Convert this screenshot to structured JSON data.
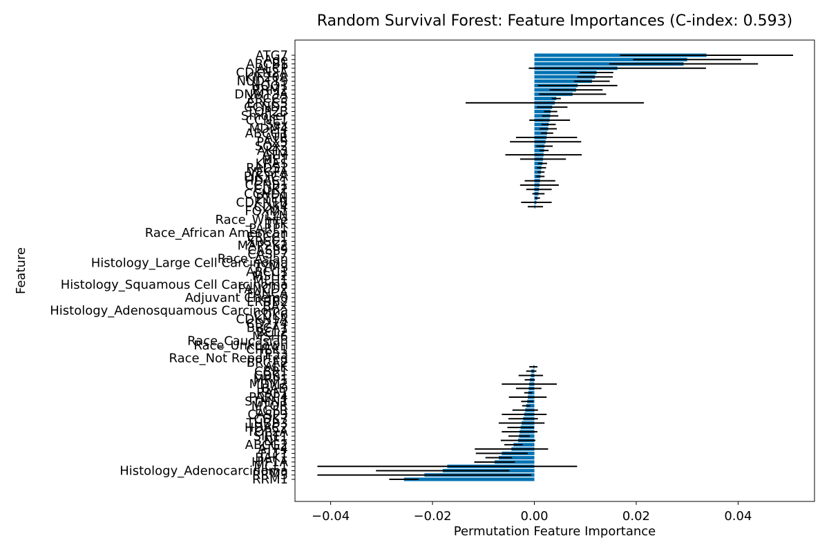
{
  "chart_data": {
    "type": "bar",
    "orientation": "horizontal",
    "title": "Random Survival Forest: Feature Importances (C-index: 0.593)",
    "xlabel": "Permutation Feature Importance",
    "ylabel": "Feature",
    "xlim": [
      -0.047,
      0.055
    ],
    "xticks": [
      -0.04,
      -0.02,
      0.0,
      0.02,
      0.04
    ],
    "xtick_labels": [
      "−0.04",
      "−0.02",
      "0.00",
      "0.02",
      "0.04"
    ],
    "grid": false,
    "bar_color": "#0072b2",
    "error_color": "#000000",
    "features": [
      {
        "name": "ATG7",
        "value": 0.0338,
        "err": 0.017
      },
      {
        "name": "Age",
        "value": 0.03,
        "err": 0.0106
      },
      {
        "name": "ABCB1",
        "value": 0.0293,
        "err": 0.0146
      },
      {
        "name": "ALCP",
        "value": 0.0163,
        "err": 0.0174
      },
      {
        "name": "CDKN2A",
        "value": 0.0122,
        "err": 0.0033
      },
      {
        "name": "KIF20A",
        "value": 0.0119,
        "err": 0.0035
      },
      {
        "name": "NUDT15",
        "value": 0.0113,
        "err": 0.0035
      },
      {
        "name": "NQO1",
        "value": 0.0085,
        "err": 0.0078
      },
      {
        "name": "RRM2",
        "value": 0.0082,
        "err": 0.0052
      },
      {
        "name": "DNMT3A",
        "value": 0.0075,
        "err": 0.0066
      },
      {
        "name": "XRCC3",
        "value": 0.0043,
        "err": 0.0009
      },
      {
        "name": "ERCC5",
        "value": 0.004,
        "err": 0.0175
      },
      {
        "name": "CCND3",
        "value": 0.0035,
        "err": 0.003
      },
      {
        "name": "TOP2B",
        "value": 0.0032,
        "err": 0.0013
      },
      {
        "name": "Smoker",
        "value": 0.0031,
        "err": 0.0016
      },
      {
        "name": "CCNE1",
        "value": 0.003,
        "err": 0.004
      },
      {
        "name": "Sex",
        "value": 0.0028,
        "err": 0.0014
      },
      {
        "name": "MDM4",
        "value": 0.0027,
        "err": 0.0017
      },
      {
        "name": "ABCG1",
        "value": 0.0025,
        "err": 0.0012
      },
      {
        "name": "ATR",
        "value": 0.0024,
        "err": 0.006
      },
      {
        "name": "PAX5",
        "value": 0.0022,
        "err": 0.007
      },
      {
        "name": "SOX2",
        "value": 0.002,
        "err": 0.0016
      },
      {
        "name": "AKT3",
        "value": 0.0019,
        "err": 0.0009
      },
      {
        "name": "ATM",
        "value": 0.0018,
        "err": 0.0075
      },
      {
        "name": "MET",
        "value": 0.0017,
        "err": 0.0045
      },
      {
        "name": "KRAS",
        "value": 0.0016,
        "err": 0.0009
      },
      {
        "name": "RAD51",
        "value": 0.0014,
        "err": 0.0009
      },
      {
        "name": "VEGFA",
        "value": 0.0013,
        "err": 0.0007
      },
      {
        "name": "PIK3CA",
        "value": 0.0012,
        "err": 0.0008
      },
      {
        "name": "HDAC1",
        "value": 0.0011,
        "err": 0.003
      },
      {
        "name": "CCNB1",
        "value": 0.001,
        "err": 0.0038
      },
      {
        "name": "CDK2",
        "value": 0.0009,
        "err": 0.0025
      },
      {
        "name": "CCND1",
        "value": 0.0008,
        "err": 0.0012
      },
      {
        "name": "PTEN",
        "value": 0.0006,
        "err": 0.0005
      },
      {
        "name": "CDKN1B",
        "value": 0.0004,
        "err": 0.003
      },
      {
        "name": "CDK4",
        "value": 0.0002,
        "err": 0.0015
      },
      {
        "name": "FOXM1",
        "value": 0,
        "err": 0
      },
      {
        "name": "LYN",
        "value": 0,
        "err": 0
      },
      {
        "name": "Race_White",
        "value": 0,
        "err": 0
      },
      {
        "name": "TTK",
        "value": 0,
        "err": 0
      },
      {
        "name": "PARP1",
        "value": 0,
        "err": 0
      },
      {
        "name": "Race_African American",
        "value": 0,
        "err": 0
      },
      {
        "name": "ERCC1",
        "value": 0,
        "err": 0
      },
      {
        "name": "XRCC1",
        "value": 0,
        "err": 0
      },
      {
        "name": "MAP2K2",
        "value": 0,
        "err": 0
      },
      {
        "name": "CASP9",
        "value": 0,
        "err": 0
      },
      {
        "name": "CASP7",
        "value": 0,
        "err": 0
      },
      {
        "name": "Race_Asian",
        "value": 0,
        "err": 0
      },
      {
        "name": "Histology_Large Cell Carcinoma",
        "value": 0,
        "err": 0
      },
      {
        "name": "TYMS",
        "value": 0,
        "err": 0
      },
      {
        "name": "ABCC1",
        "value": 0,
        "err": 0
      },
      {
        "name": "MSH2",
        "value": 0,
        "err": 0
      },
      {
        "name": "MLH1",
        "value": 0,
        "err": 0
      },
      {
        "name": "Histology_Squamous Cell Carcinoma",
        "value": 0,
        "err": 0
      },
      {
        "name": "FANCD2",
        "value": 0,
        "err": 0
      },
      {
        "name": "FANCA",
        "value": 0,
        "err": 0
      },
      {
        "name": "Adjuvant Chemo",
        "value": 0,
        "err": 0
      },
      {
        "name": "ERBB2",
        "value": 0,
        "err": 0
      },
      {
        "name": "BAX",
        "value": 0,
        "err": 0
      },
      {
        "name": "Histology_Adenosquamous Carcinoma",
        "value": 0,
        "err": 0
      },
      {
        "name": "CDK6",
        "value": 0,
        "err": 0
      },
      {
        "name": "CDKN1A",
        "value": 0,
        "err": 0
      },
      {
        "name": "CD274",
        "value": 0,
        "err": 0
      },
      {
        "name": "BRCA1",
        "value": 0,
        "err": 0
      },
      {
        "name": "BCL2",
        "value": 0,
        "err": 0
      },
      {
        "name": "MSH6",
        "value": 0,
        "err": 0
      },
      {
        "name": "Race_Caucasian",
        "value": 0,
        "err": 0
      },
      {
        "name": "Race_Unknown",
        "value": 0,
        "err": 0
      },
      {
        "name": "CHEK1",
        "value": 0,
        "err": 0
      },
      {
        "name": "TP53",
        "value": 0,
        "err": 0
      },
      {
        "name": "Race_Not Reported",
        "value": 0,
        "err": 0
      },
      {
        "name": "BRCA2",
        "value": 0,
        "err": 0
      },
      {
        "name": "ALK",
        "value": -0.0002,
        "err": 0.0008
      },
      {
        "name": "CBR1",
        "value": -0.0006,
        "err": 0.001
      },
      {
        "name": "CDK1",
        "value": -0.0007,
        "err": 0.0024
      },
      {
        "name": "MRP1",
        "value": -0.0009,
        "err": 0.001
      },
      {
        "name": "MDM2",
        "value": -0.001,
        "err": 0.0054
      },
      {
        "name": "BAD",
        "value": -0.0011,
        "err": 0.0025
      },
      {
        "name": "RAF1",
        "value": -0.0012,
        "err": 0.0008
      },
      {
        "name": "PARP4",
        "value": -0.0013,
        "err": 0.0037
      },
      {
        "name": "STMN1",
        "value": -0.0014,
        "err": 0.0012
      },
      {
        "name": "MTOR",
        "value": -0.0016,
        "err": 0.0008
      },
      {
        "name": "EGFR",
        "value": -0.0018,
        "err": 0.0025
      },
      {
        "name": "CASP3",
        "value": -0.002,
        "err": 0.0044
      },
      {
        "name": "CDK7",
        "value": -0.0022,
        "err": 0.0029
      },
      {
        "name": "TUBB3",
        "value": -0.0025,
        "err": 0.0045
      },
      {
        "name": "HDAC2",
        "value": -0.0027,
        "err": 0.0026
      },
      {
        "name": "TOP2A",
        "value": -0.0029,
        "err": 0.0035
      },
      {
        "name": "SIRT1",
        "value": -0.003,
        "err": 0.0021
      },
      {
        "name": "NF1",
        "value": -0.0032,
        "err": 0.0034
      },
      {
        "name": "ABCG2",
        "value": -0.0041,
        "err": 0.0018
      },
      {
        "name": "ATF4",
        "value": -0.0045,
        "err": 0.0072
      },
      {
        "name": "FLT1",
        "value": -0.0064,
        "err": 0.0051
      },
      {
        "name": "BAK1",
        "value": -0.007,
        "err": 0.0026
      },
      {
        "name": "HIF1A",
        "value": -0.0078,
        "err": 0.004
      },
      {
        "name": "MCL1",
        "value": -0.0171,
        "err": 0.0255
      },
      {
        "name": "Histology_Adenocarcinoma",
        "value": -0.018,
        "err": 0.0131
      },
      {
        "name": "RRM3",
        "value": -0.0216,
        "err": 0.021
      },
      {
        "name": "RRM1",
        "value": -0.0256,
        "err": 0.0029
      }
    ]
  }
}
